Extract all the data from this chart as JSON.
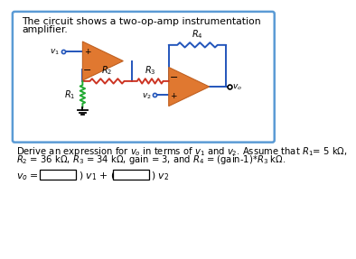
{
  "title_line1": "The circuit shows a two-op-amp instrumentation",
  "title_line2": "amplifier.",
  "desc_line1": "Derive an expression for $v_o$ in terms of $v_1$ and $v_2$. Assume that $R_1$= 5 kΩ,",
  "desc_line2": "$R_2$ = 36 kΩ, $R_3$ = 34 kΩ, gain = 3, and $R_4$ = (gain-1)*$R_3$ kΩ.",
  "outer_box_color": "#5b9bd5",
  "op_amp_fill": "#e07830",
  "op_amp_edge": "#c06020",
  "wire_color": "#2255bb",
  "resistor_color_R1": "#22aa33",
  "resistor_color_R2": "#cc3322",
  "resistor_color_R3": "#cc3322",
  "resistor_color_R4": "#2255bb",
  "text_color": "#000000",
  "background": "#ffffff"
}
